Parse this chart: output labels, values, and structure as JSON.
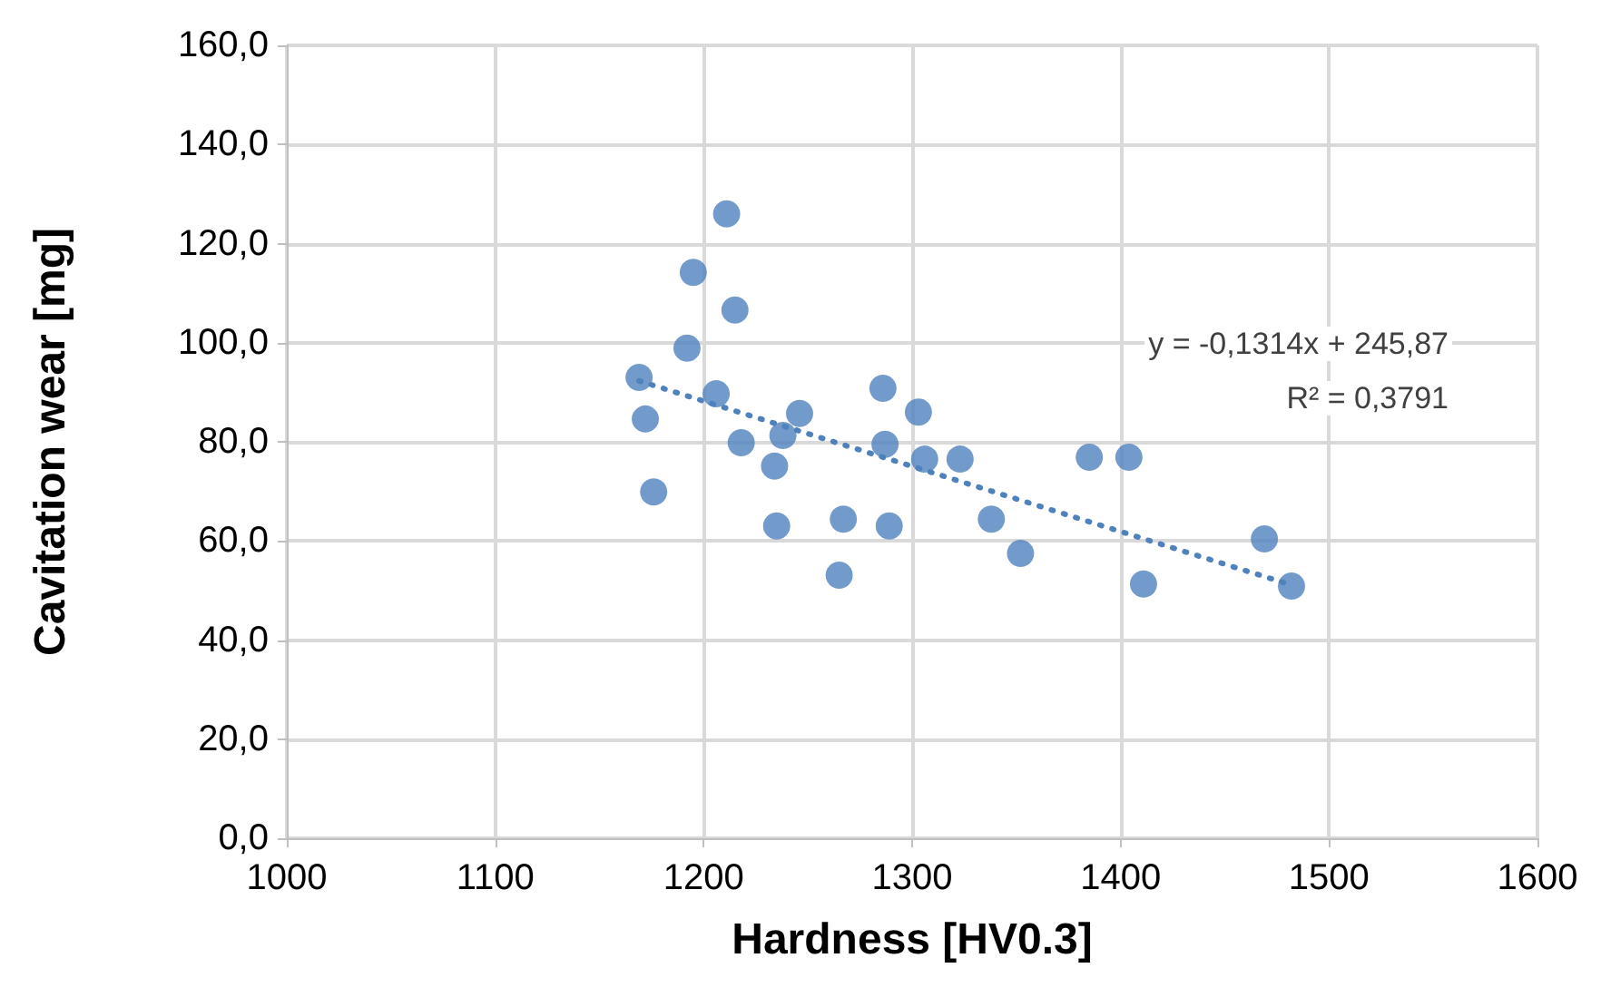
{
  "chart_data": {
    "type": "scatter",
    "xlabel": "Hardness [HV0.3]",
    "ylabel": "Cavitation wear [mg]",
    "xlim": [
      1000,
      1600
    ],
    "xticks": [
      1000,
      1100,
      1200,
      1300,
      1400,
      1500,
      1600
    ],
    "ylim": [
      0,
      160
    ],
    "yticks": [
      {
        "value": 0,
        "label": "0,0"
      },
      {
        "value": 20,
        "label": "20,0"
      },
      {
        "value": 40,
        "label": "40,0"
      },
      {
        "value": 60,
        "label": "60,0"
      },
      {
        "value": 80,
        "label": "80,0"
      },
      {
        "value": 100,
        "label": "100,0"
      },
      {
        "value": 120,
        "label": "120,0"
      },
      {
        "value": 140,
        "label": "140,0"
      },
      {
        "value": 160,
        "label": "160,0"
      }
    ],
    "grid": true,
    "marker": "circle",
    "annotations": [
      "y = -0,1314x + 245,87",
      "R² = 0,3791"
    ],
    "series": [
      {
        "color": "#4f81bd",
        "x": [
          1169,
          1172,
          1176,
          1192,
          1195,
          1206,
          1211,
          1215,
          1218,
          1234,
          1235,
          1238,
          1246,
          1265,
          1267,
          1286,
          1287,
          1289,
          1303,
          1306,
          1323,
          1338,
          1352,
          1385,
          1404,
          1411,
          1469,
          1482
        ],
        "values": [
          93.0,
          84.6,
          69.9,
          98.9,
          114.2,
          89.7,
          126.0,
          106.6,
          79.8,
          75.1,
          63.0,
          81.3,
          85.7,
          53.1,
          64.4,
          90.8,
          79.5,
          63.0,
          86.0,
          76.5,
          76.5,
          64.4,
          57.5,
          76.9,
          76.9,
          51.3,
          60.4,
          50.9
        ]
      },
      {
        "type": "line",
        "color": "#4f81bd",
        "line_style": "dotted",
        "marker": "none",
        "x": [
          1169,
          1482
        ],
        "values": [
          92.3,
          51.1
        ]
      }
    ]
  }
}
